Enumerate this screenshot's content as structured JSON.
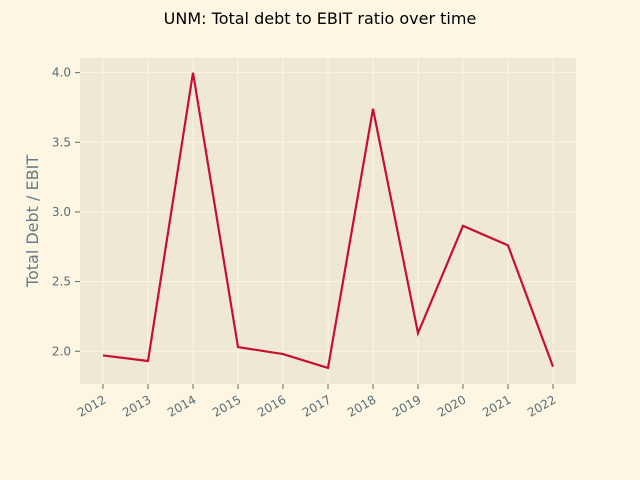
{
  "chart_data": {
    "type": "line",
    "title": "UNM: Total debt to EBIT ratio over time",
    "xlabel": "",
    "ylabel": "Total Debt / EBIT",
    "x": [
      "2012",
      "2013",
      "2014",
      "2015",
      "2016",
      "2017",
      "2018",
      "2019",
      "2020",
      "2021",
      "2022"
    ],
    "series": [
      {
        "values": [
          1.97,
          1.93,
          4.0,
          2.03,
          1.98,
          1.88,
          3.74,
          2.13,
          2.9,
          2.76,
          1.89
        ]
      }
    ],
    "yticks": [
      2.0,
      2.5,
      3.0,
      3.5,
      4.0
    ],
    "ytick_labels": [
      "2.0",
      "2.5",
      "3.0",
      "3.5",
      "4.0"
    ],
    "ylim": [
      1.765,
      4.105
    ],
    "grid": true,
    "colors": {
      "page_background": "#fdf6e3",
      "plot_background": "#eee8d5",
      "grid": "#fdf6e3",
      "line": "#c8102e",
      "tick_text": "#586e75",
      "axis_label": "#657b83"
    }
  }
}
